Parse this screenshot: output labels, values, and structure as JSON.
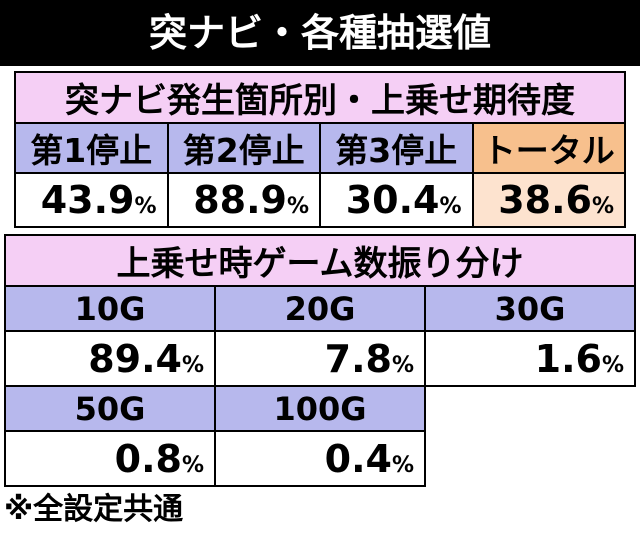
{
  "title": "突ナビ・各種抽選値",
  "section1": {
    "header": "突ナビ発生箇所別・上乗せ期待度",
    "columns": [
      "第1停止",
      "第2停止",
      "第3停止",
      "トータル"
    ],
    "values": [
      "43.9",
      "88.9",
      "30.4",
      "38.6"
    ],
    "unit": "%"
  },
  "section2": {
    "header": "上乗せ時ゲーム数振り分け",
    "labels": [
      "10G",
      "20G",
      "30G",
      "50G",
      "100G"
    ],
    "values": [
      "89.4",
      "7.8",
      "1.6",
      "0.8",
      "0.4"
    ],
    "unit": "%"
  },
  "note": "※全設定共通",
  "colors": {
    "header_bg": "#f5cff5",
    "label_bg": "#b7b8ed",
    "total_label_bg": "#f7c08d",
    "total_value_bg": "#fde3cf"
  }
}
